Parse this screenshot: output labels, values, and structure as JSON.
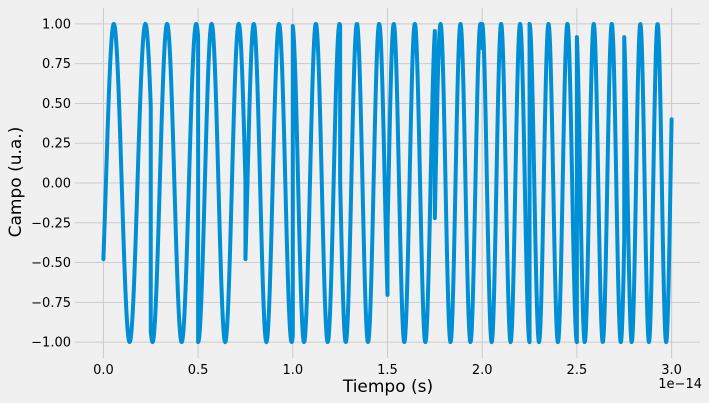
{
  "chart_data": {
    "type": "line",
    "title": "",
    "xlabel": "Tiempo (s)",
    "ylabel": "Campo (u.a.)",
    "x_offset_text": "1e−14",
    "x_scale_exponent": -14,
    "xlim": [
      -0.15,
      3.15
    ],
    "ylim": [
      -1.1,
      1.1
    ],
    "x_ticks": [
      0.0,
      0.5,
      1.0,
      1.5,
      2.0,
      2.5,
      3.0
    ],
    "x_tick_labels": [
      "0.0",
      "0.5",
      "1.0",
      "1.5",
      "2.0",
      "2.5",
      "3.0"
    ],
    "y_ticks": [
      -1.0,
      -0.75,
      -0.5,
      -0.25,
      0.0,
      0.25,
      0.5,
      0.75,
      1.0
    ],
    "y_tick_labels": [
      "−1.00",
      "−0.75",
      "−0.50",
      "−0.25",
      "0.00",
      "0.25",
      "0.50",
      "0.75",
      "1.00"
    ],
    "grid": true,
    "series": [
      {
        "color": "#008fd5",
        "segments": [
          {
            "t_start": 0.0,
            "t_end": 0.25,
            "phase": -2.07,
            "period": 0.1667
          },
          {
            "t_start": 0.25,
            "t_end": 0.5,
            "phase": 2.76,
            "period": 0.1538
          },
          {
            "t_start": 0.5,
            "t_end": 0.75,
            "phase": 3.14,
            "period": 0.1429
          },
          {
            "t_start": 0.75,
            "t_end": 1.0,
            "phase": -2.07,
            "period": 0.1333
          },
          {
            "t_start": 1.0,
            "t_end": 1.25,
            "phase": 0.16,
            "period": 0.125
          },
          {
            "t_start": 1.25,
            "t_end": 1.5,
            "phase": 1.56,
            "period": 0.1176
          },
          {
            "t_start": 1.5,
            "t_end": 1.75,
            "phase": 4.41,
            "period": 0.1111
          },
          {
            "t_start": 1.75,
            "t_end": 2.0,
            "phase": 4.49,
            "period": 0.1053
          },
          {
            "t_start": 2.0,
            "t_end": 2.25,
            "phase": 0.0,
            "period": 0.1
          },
          {
            "t_start": 2.25,
            "t_end": 2.5,
            "phase": 0.0,
            "period": 0.1
          },
          {
            "t_start": 2.5,
            "t_end": 2.75,
            "phase": 0.41,
            "period": 0.0952
          },
          {
            "t_start": 2.75,
            "t_end": 3.0,
            "phase": 0.41,
            "period": 0.0909
          }
        ]
      }
    ]
  }
}
